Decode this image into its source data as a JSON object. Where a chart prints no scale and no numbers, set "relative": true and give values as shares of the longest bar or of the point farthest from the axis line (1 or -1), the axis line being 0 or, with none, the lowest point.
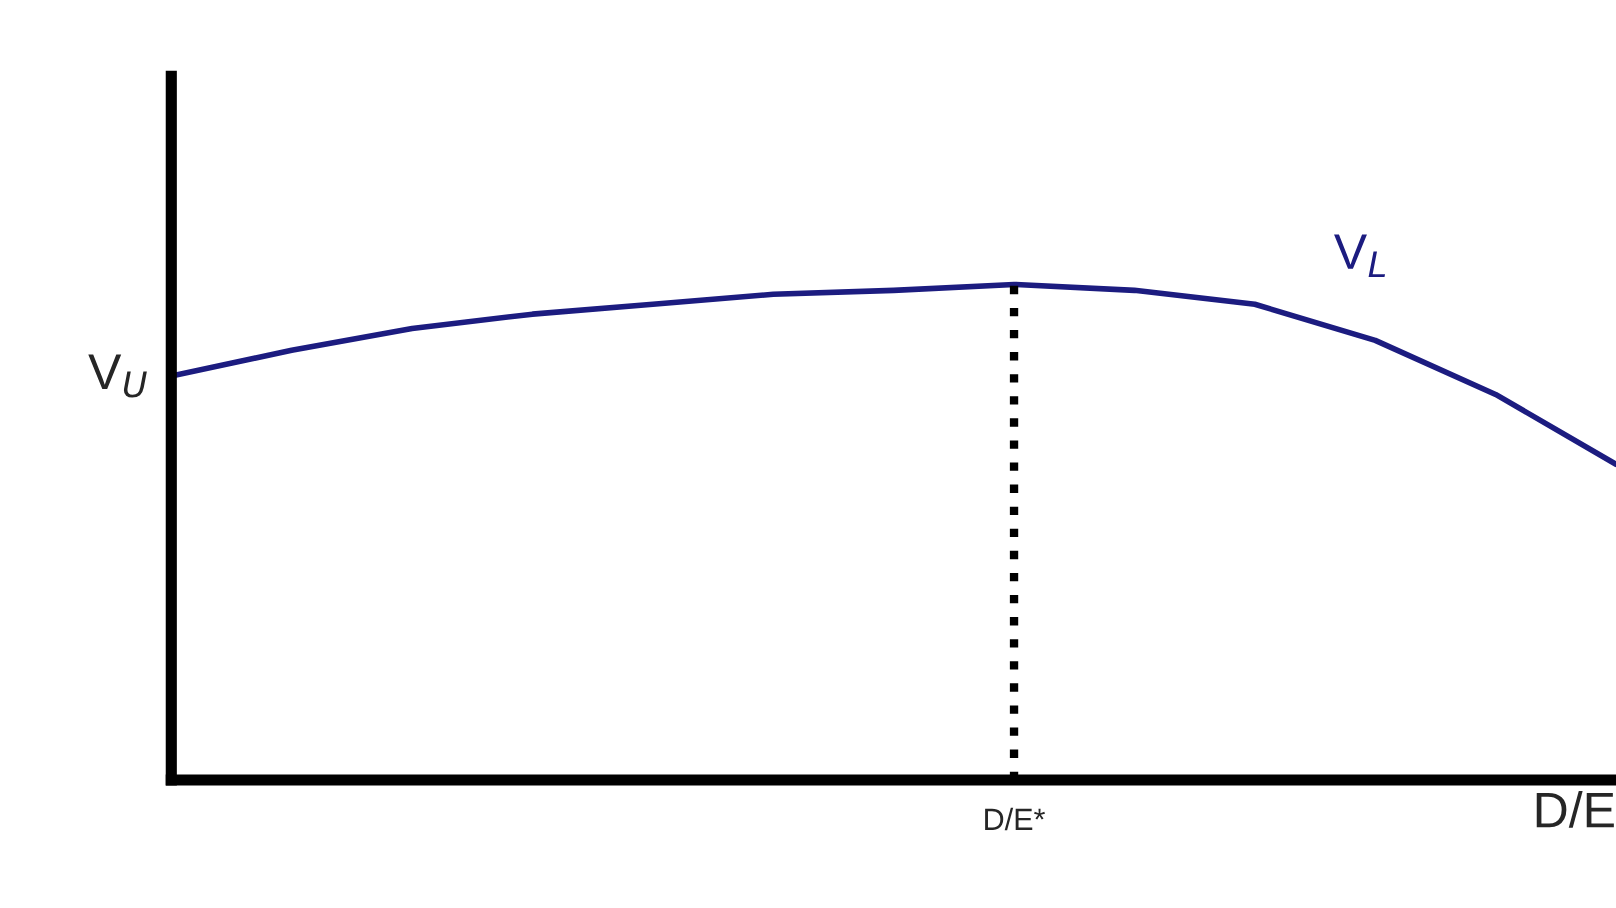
{
  "chart_data": {
    "type": "line",
    "relative": true,
    "xlabel": "D/E",
    "marker": "none",
    "line_style": "solid",
    "categories": [
      null,
      null,
      null,
      null,
      null,
      null,
      null,
      null,
      null,
      null,
      null,
      null,
      null
    ],
    "series": [
      {
        "name": "V$_{L}$",
        "color": "#1c1c80",
        "values": [
          0.815,
          0.867,
          0.911,
          0.94,
          0.96,
          0.98,
          0.988,
          1.0,
          0.988,
          0.96,
          0.887,
          0.778,
          0.637
        ]
      }
    ],
    "annotations": [
      "V$_{U}$",
      "D/E*"
    ]
  }
}
